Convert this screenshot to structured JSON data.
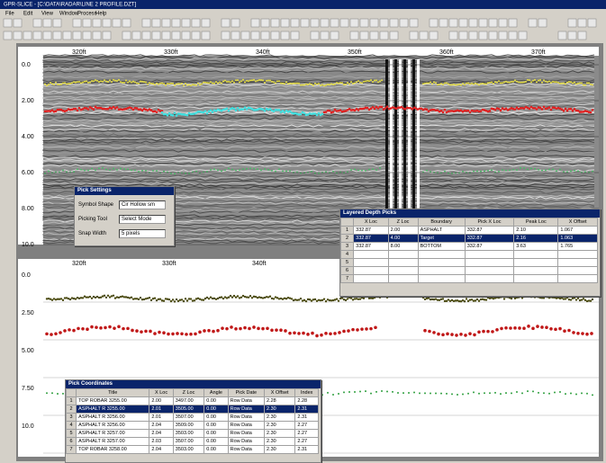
{
  "window": {
    "title": "GPR-SLICE - [C:\\DATA\\RADAR\\LINE 2 PROFILE.DZT]",
    "menu": [
      "File",
      "Edit",
      "View",
      "Window",
      "Process",
      "Help"
    ]
  },
  "top_panel": {
    "depth_labels": [
      "0.0",
      "2.00",
      "4.00",
      "6.00",
      "8.00",
      "10.0"
    ],
    "distance_labels": [
      "320ft",
      "330ft",
      "340ft",
      "350ft",
      "360ft",
      "370ft"
    ]
  },
  "bottom_panel": {
    "depth_labels": [
      "0.0",
      "2.50",
      "5.00",
      "7.50",
      "10.0"
    ],
    "distance_labels": [
      "320ft",
      "330ft",
      "340ft"
    ]
  },
  "pick_dialog": {
    "title": "Pick Settings",
    "fields": [
      {
        "label": "Symbol Shape",
        "value": "Cir Hollow sm"
      },
      {
        "label": "Picking Tool",
        "value": "Select Mode"
      },
      {
        "label": "Snap Width",
        "value": "5 pixels"
      }
    ]
  },
  "pick_table": {
    "title": "Layered Depth Picks",
    "columns": [
      "X Loc",
      "Z Loc",
      "Boundary",
      "Pick X Loc",
      "Peak Loc",
      "X Offset"
    ],
    "row_numbers": [
      "1",
      "2",
      "3",
      "4",
      "5",
      "6",
      "7"
    ],
    "rows": [
      [
        "332.87",
        "2.00",
        "ASPHALT",
        "332.87",
        "2.10",
        "1.067"
      ],
      [
        "332.87",
        "4.00",
        "Target",
        "332.87",
        "2.16",
        "1.063"
      ],
      [
        "332.87",
        "8.00",
        "BOTTOM",
        "332.87",
        "3.63",
        "1.765"
      ]
    ]
  },
  "pick_list": {
    "title": "Pick Coordinates",
    "columns": [
      "Title",
      "X Loc",
      "Z Loc",
      "Angle",
      "Pick Date",
      "X Offset",
      "Index"
    ],
    "row_numbers": [
      "1",
      "2",
      "3",
      "4",
      "5",
      "6",
      "7"
    ],
    "rows": [
      [
        "TOP ROBAR 3255.00",
        "2.00",
        "3497.00",
        "0.00",
        "Row Data",
        "2.28",
        "2.28"
      ],
      [
        "ASPHALT R 3255.00",
        "2.01",
        "3505.00",
        "0.00",
        "Row Data",
        "2.30",
        "2.31"
      ],
      [
        "ASPHALT R 3256.00",
        "2.01",
        "3507.00",
        "0.00",
        "Row Data",
        "2.30",
        "2.31"
      ],
      [
        "ASPHALT R 3256.00",
        "2.04",
        "3509.00",
        "0.00",
        "Row Data",
        "2.30",
        "2.27"
      ],
      [
        "ASPHALT R 3257.00",
        "2.04",
        "3503.00",
        "0.00",
        "Row Data",
        "2.30",
        "2.27"
      ],
      [
        "ASPHALT R 3257.00",
        "2.03",
        "3507.00",
        "0.00",
        "Row Data",
        "2.30",
        "2.27"
      ],
      [
        "TOP ROBAR 3258.00",
        "2.04",
        "3503.00",
        "0.00",
        "Row Data",
        "2.30",
        "2.31"
      ]
    ]
  }
}
